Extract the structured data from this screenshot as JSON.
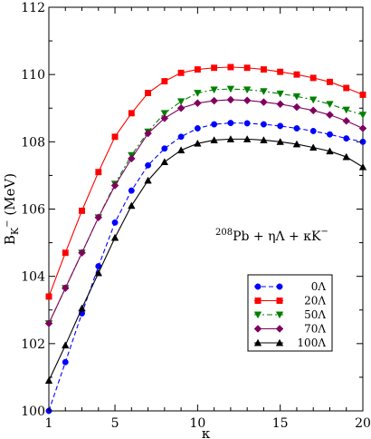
{
  "chart_data": {
    "type": "line",
    "xlabel": "κ",
    "ylabel_base": "B",
    "ylabel_sub": "K",
    "ylabel_sup": "−",
    "ylabel_unit": " (MeV)",
    "xlim": [
      1,
      20
    ],
    "ylim": [
      100,
      112
    ],
    "xticks": [
      1,
      5,
      10,
      15,
      20
    ],
    "yticks": [
      100,
      102,
      104,
      106,
      108,
      110,
      112
    ],
    "annotation": {
      "sup": "208",
      "text": "Pb + ηΛ + κK",
      "tail_sup": "−"
    },
    "grid": false,
    "legend_position": "center-right",
    "series": [
      {
        "name": "0Λ",
        "color": "#0000ff",
        "marker": "circle",
        "dash": "dashed",
        "x": [
          1,
          2,
          3,
          4,
          5,
          6,
          7,
          8,
          9,
          10,
          11,
          12,
          13,
          14,
          15,
          16,
          17,
          18,
          19,
          20
        ],
        "y": [
          100.0,
          101.45,
          102.9,
          104.3,
          105.6,
          106.55,
          107.3,
          107.8,
          108.15,
          108.4,
          108.52,
          108.56,
          108.55,
          108.52,
          108.47,
          108.4,
          108.32,
          108.22,
          108.1,
          108.0
        ]
      },
      {
        "name": "20Λ",
        "color": "#ff0000",
        "marker": "square",
        "dash": "solid",
        "x": [
          1,
          2,
          3,
          4,
          5,
          6,
          7,
          8,
          9,
          10,
          11,
          12,
          13,
          14,
          15,
          16,
          17,
          18,
          19,
          20
        ],
        "y": [
          103.4,
          104.7,
          105.95,
          107.1,
          108.15,
          108.85,
          109.45,
          109.8,
          110.05,
          110.15,
          110.2,
          110.22,
          110.2,
          110.15,
          110.08,
          110.0,
          109.9,
          109.78,
          109.6,
          109.4
        ]
      },
      {
        "name": "50Λ",
        "color": "#008000",
        "marker": "triangle-down",
        "dash": "dashdot",
        "x": [
          1,
          2,
          3,
          4,
          5,
          6,
          7,
          8,
          9,
          10,
          11,
          12,
          13,
          14,
          15,
          16,
          17,
          18,
          19,
          20
        ],
        "y": [
          102.6,
          103.65,
          104.7,
          105.75,
          106.75,
          107.6,
          108.3,
          108.85,
          109.2,
          109.45,
          109.55,
          109.57,
          109.55,
          109.5,
          109.43,
          109.35,
          109.25,
          109.12,
          108.95,
          108.8
        ]
      },
      {
        "name": "70Λ",
        "color": "#800060",
        "marker": "diamond",
        "dash": "solid",
        "x": [
          1,
          2,
          3,
          4,
          5,
          6,
          7,
          8,
          9,
          10,
          11,
          12,
          13,
          14,
          15,
          16,
          17,
          18,
          19,
          20
        ],
        "y": [
          102.6,
          103.65,
          104.7,
          105.75,
          106.7,
          107.5,
          108.25,
          108.7,
          109.0,
          109.15,
          109.22,
          109.25,
          109.23,
          109.18,
          109.12,
          109.03,
          108.93,
          108.8,
          108.62,
          108.4
        ]
      },
      {
        "name": "100Λ",
        "color": "#000000",
        "marker": "triangle-up",
        "dash": "solid",
        "x": [
          1,
          2,
          3,
          4,
          5,
          6,
          7,
          8,
          9,
          10,
          11,
          12,
          13,
          14,
          15,
          16,
          17,
          18,
          19,
          20
        ],
        "y": [
          100.9,
          101.95,
          103.05,
          104.1,
          105.15,
          106.1,
          106.85,
          107.4,
          107.75,
          107.95,
          108.05,
          108.08,
          108.08,
          108.05,
          108.0,
          107.93,
          107.83,
          107.72,
          107.55,
          107.25
        ]
      }
    ]
  }
}
